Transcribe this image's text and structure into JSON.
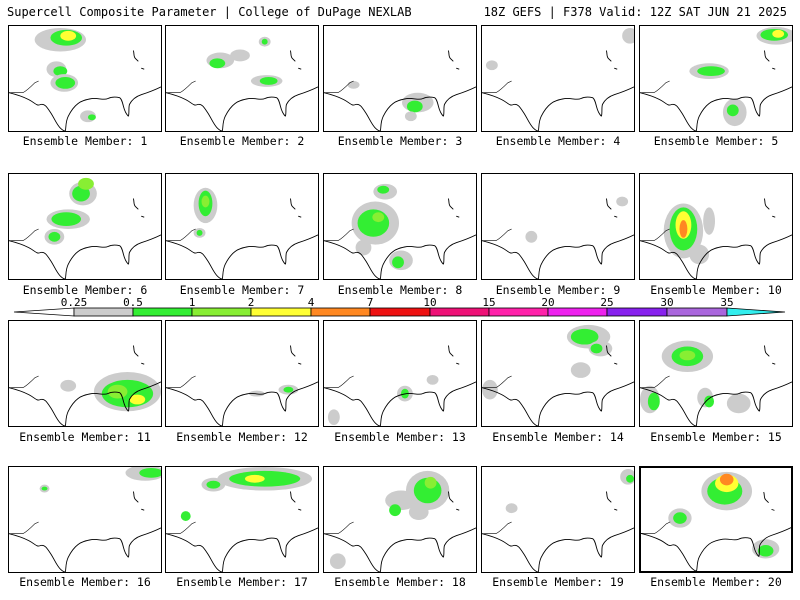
{
  "header": {
    "title_left": "Supercell Composite Parameter | College of DuPage NEXLAB",
    "title_right": "18Z GEFS | F378 Valid: 12Z SAT JUN 21 2025"
  },
  "legend": {
    "ticks": [
      "0.25",
      "0.5",
      "1",
      "2",
      "4",
      "7",
      "10",
      "15",
      "20",
      "25",
      "30",
      "35"
    ],
    "colors": [
      "#cccccc",
      "#33ee33",
      "#88ee33",
      "#ffff33",
      "#ff8822",
      "#ee1111",
      "#ee1177",
      "#ff22aa",
      "#ee22ee",
      "#8822ee",
      "#aa66dd",
      "#33eeee"
    ]
  },
  "members": [
    {
      "label": "Ensemble Member: 1"
    },
    {
      "label": "Ensemble Member: 2"
    },
    {
      "label": "Ensemble Member: 3"
    },
    {
      "label": "Ensemble Member: 4"
    },
    {
      "label": "Ensemble Member: 5"
    },
    {
      "label": "Ensemble Member: 6"
    },
    {
      "label": "Ensemble Member: 7"
    },
    {
      "label": "Ensemble Member: 8"
    },
    {
      "label": "Ensemble Member: 9"
    },
    {
      "label": "Ensemble Member: 10"
    },
    {
      "label": "Ensemble Member: 11"
    },
    {
      "label": "Ensemble Member: 12"
    },
    {
      "label": "Ensemble Member: 13"
    },
    {
      "label": "Ensemble Member: 14"
    },
    {
      "label": "Ensemble Member: 15"
    },
    {
      "label": "Ensemble Member: 16"
    },
    {
      "label": "Ensemble Member: 17"
    },
    {
      "label": "Ensemble Member: 18"
    },
    {
      "label": "Ensemble Member: 19"
    },
    {
      "label": "Ensemble Member: 20"
    }
  ]
}
